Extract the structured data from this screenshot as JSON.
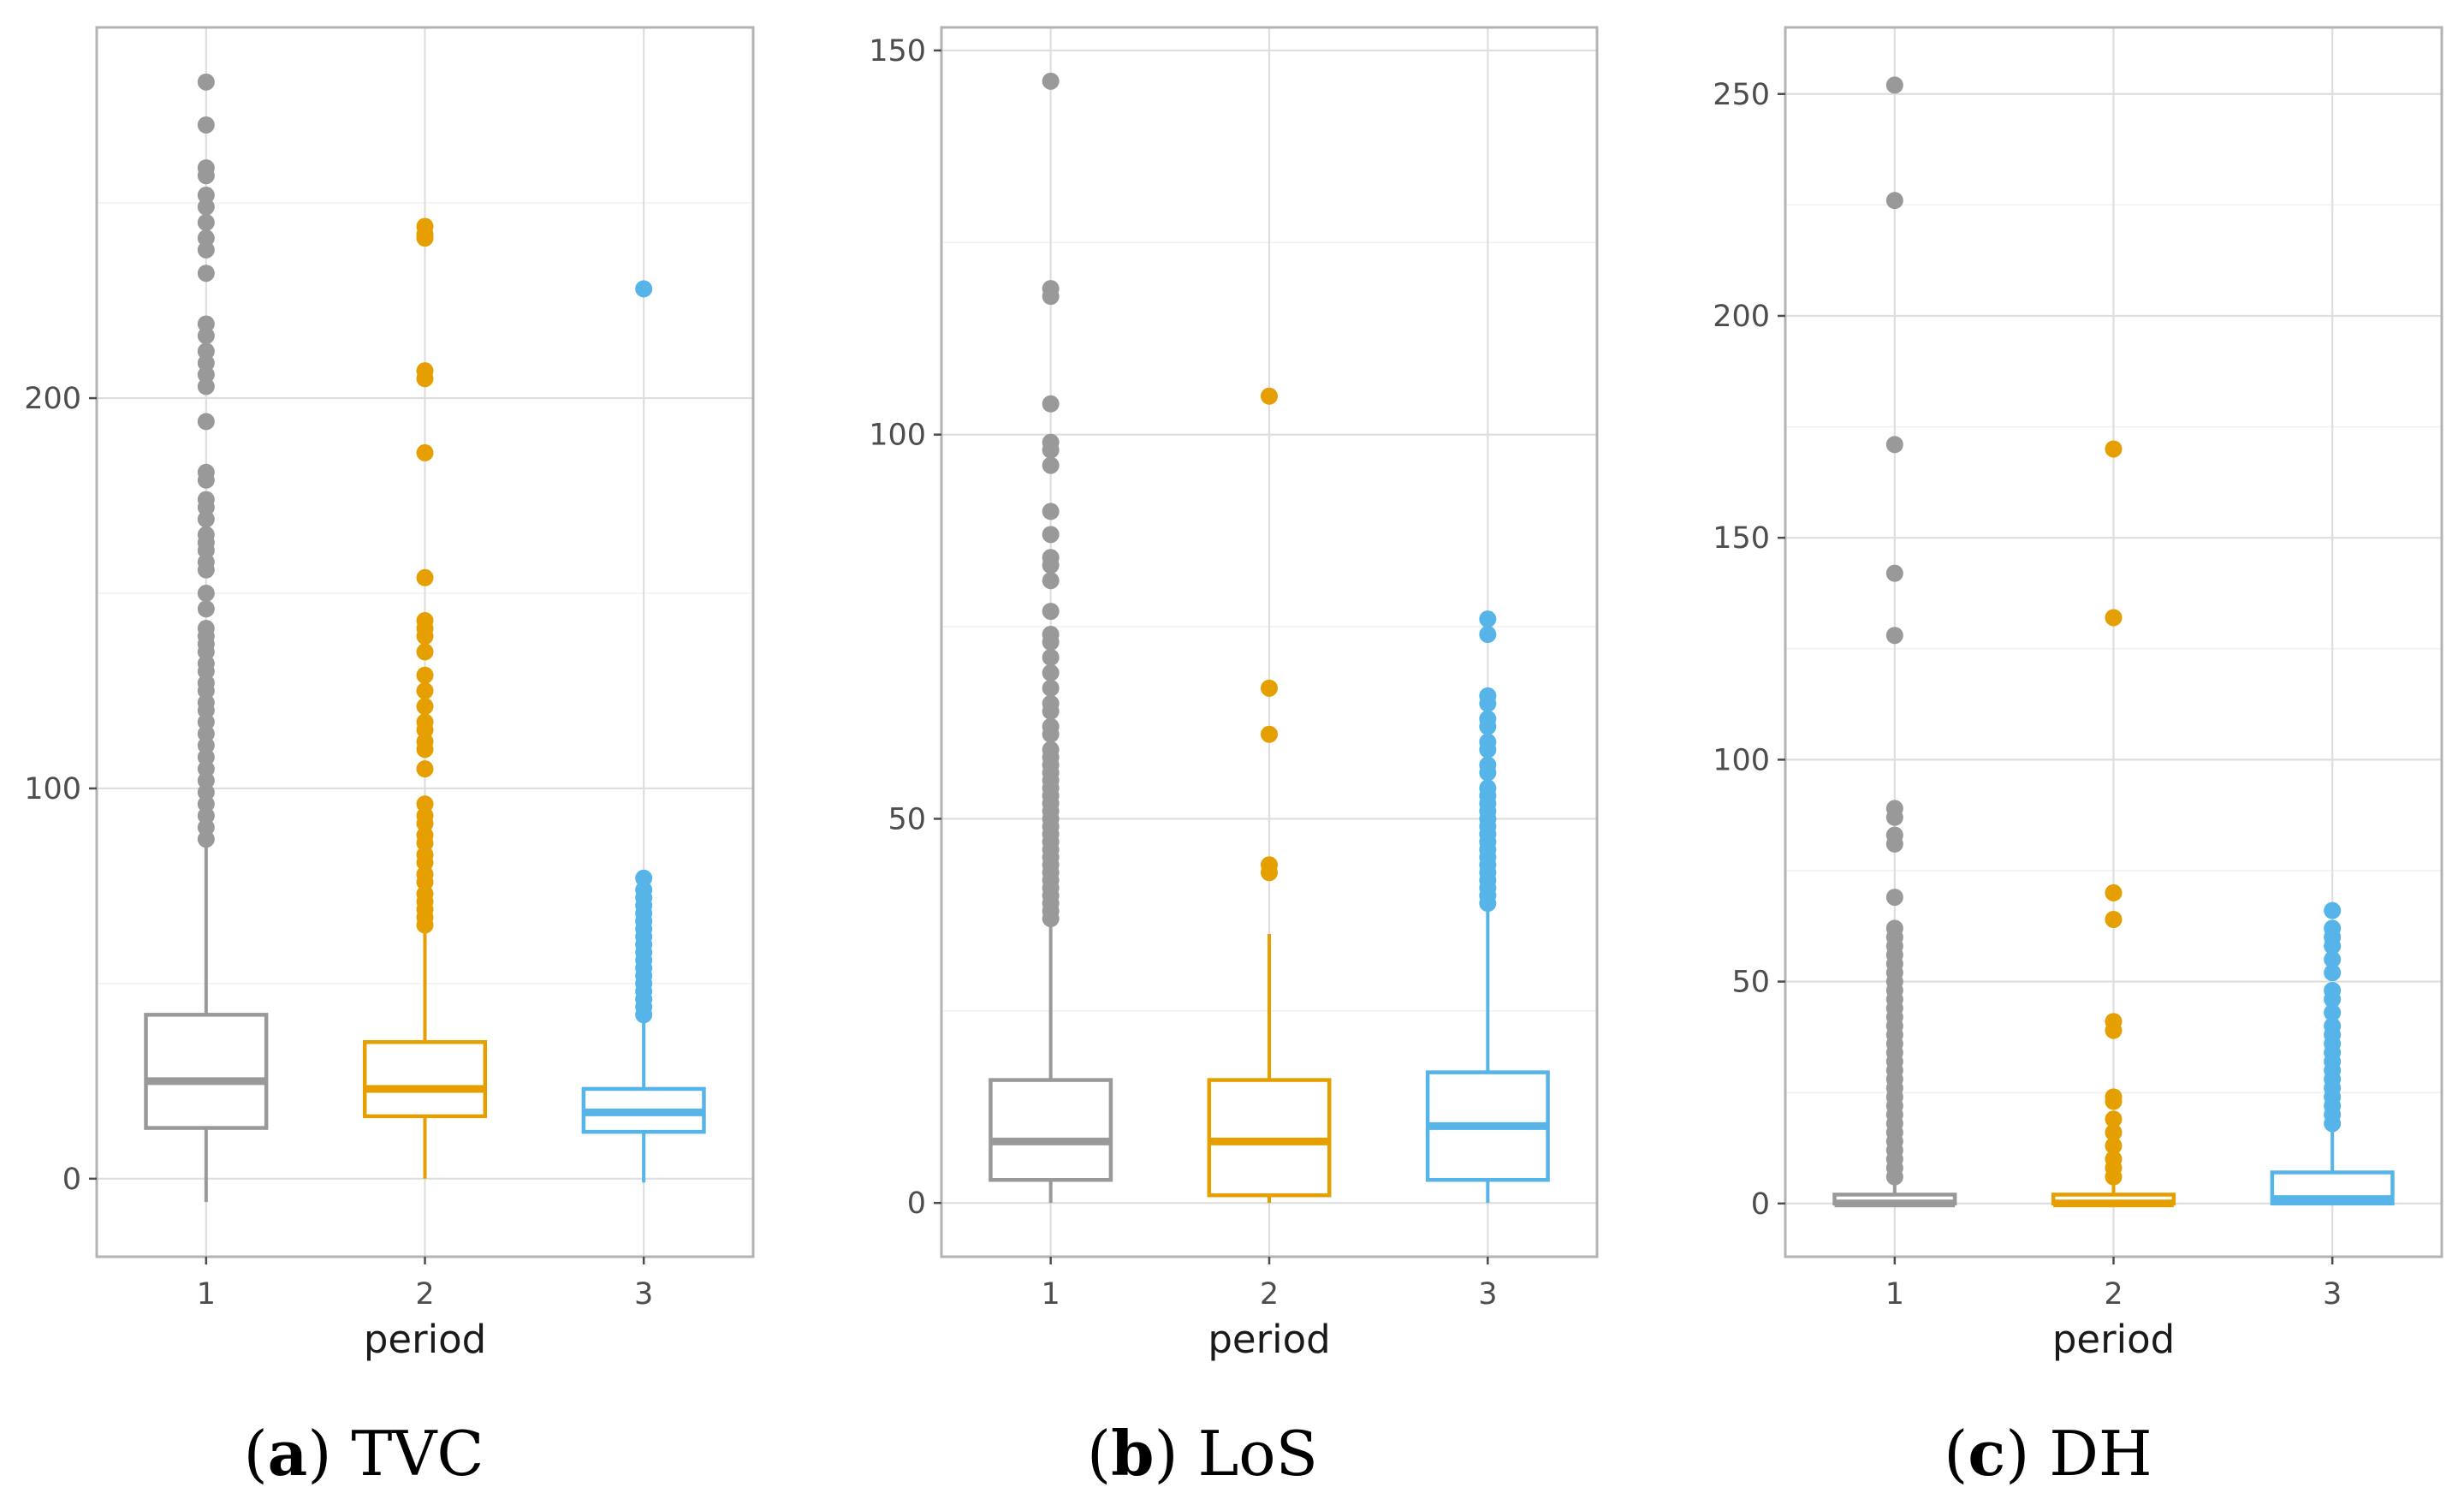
{
  "chart_data": [
    {
      "type": "boxplot",
      "caption_letter": "a",
      "caption_text": "TVC",
      "xlabel": "period",
      "ylabel": "",
      "ylim": [
        -20,
        295
      ],
      "yticks": [
        0,
        100,
        200
      ],
      "gridlines": true,
      "categories": [
        "1",
        "2",
        "3"
      ],
      "colors": [
        "#999999",
        "#E69F00",
        "#56B4E9"
      ],
      "boxes": [
        {
          "category": "1",
          "whisker_low": -6,
          "q1": 13,
          "median": 25,
          "q3": 42,
          "whisker_high": 86,
          "outliers": [
            281,
            270,
            259,
            257,
            252,
            249,
            245,
            241,
            238,
            232,
            219,
            216,
            212,
            209,
            206,
            203,
            194,
            181,
            179,
            174,
            172,
            169,
            165,
            163,
            161,
            158,
            156,
            150,
            146,
            141,
            139,
            137,
            135,
            132,
            130,
            127,
            125,
            122,
            120,
            117,
            114,
            111,
            108,
            105,
            102,
            99,
            96,
            93,
            90,
            87
          ]
        },
        {
          "category": "2",
          "whisker_low": 0,
          "q1": 16,
          "median": 23,
          "q3": 35,
          "whisker_high": 63,
          "outliers": [
            244,
            242,
            241,
            207,
            205,
            186,
            154,
            143,
            141,
            139,
            135,
            129,
            125,
            121,
            117,
            115,
            112,
            110,
            105,
            96,
            93,
            91,
            88,
            86,
            83,
            81,
            78,
            76,
            73,
            71,
            69,
            67,
            65
          ]
        },
        {
          "category": "3",
          "whisker_low": -1,
          "q1": 12,
          "median": 17,
          "q3": 23,
          "whisker_high": 40,
          "outliers": [
            228,
            77,
            74,
            72,
            70,
            68,
            66,
            64,
            62,
            60,
            58,
            56,
            54,
            52,
            50,
            48,
            46,
            44,
            42
          ]
        }
      ]
    },
    {
      "type": "boxplot",
      "caption_letter": "b",
      "caption_text": "LoS",
      "xlabel": "period",
      "ylabel": "",
      "ylim": [
        -7,
        153
      ],
      "yticks": [
        0,
        50,
        100,
        150
      ],
      "gridlines": true,
      "categories": [
        "1",
        "2",
        "3"
      ],
      "colors": [
        "#999999",
        "#E69F00",
        "#56B4E9"
      ],
      "boxes": [
        {
          "category": "1",
          "whisker_low": 0,
          "q1": 3,
          "median": 8,
          "q3": 16,
          "whisker_high": 36,
          "outliers": [
            146,
            119,
            118,
            104,
            99,
            98,
            96,
            90,
            87,
            84,
            83,
            81,
            77,
            74,
            73,
            71,
            69,
            67,
            65,
            64,
            62,
            61,
            59,
            58,
            57,
            56,
            55,
            54,
            53,
            52,
            51,
            50,
            49,
            48,
            47,
            46,
            45,
            44,
            43,
            42,
            41,
            40,
            39,
            38,
            37
          ]
        },
        {
          "category": "2",
          "whisker_low": 0,
          "q1": 1,
          "median": 8,
          "q3": 16,
          "whisker_high": 35,
          "outliers": [
            105,
            67,
            61,
            44,
            43
          ]
        },
        {
          "category": "3",
          "whisker_low": 0,
          "q1": 3,
          "median": 10,
          "q3": 17,
          "whisker_high": 38,
          "outliers": [
            76,
            74,
            66,
            65,
            63,
            62,
            60,
            59,
            57,
            56,
            54,
            53,
            52,
            51,
            50,
            49,
            48,
            47,
            46,
            45,
            44,
            43,
            42,
            41,
            40,
            39
          ]
        }
      ]
    },
    {
      "type": "boxplot",
      "caption_letter": "c",
      "caption_text": "DH",
      "xlabel": "period",
      "ylabel": "",
      "ylim": [
        -12,
        265
      ],
      "yticks": [
        0,
        50,
        100,
        150,
        200,
        250
      ],
      "gridlines": true,
      "categories": [
        "1",
        "2",
        "3"
      ],
      "colors": [
        "#999999",
        "#E69F00",
        "#56B4E9"
      ],
      "boxes": [
        {
          "category": "1",
          "whisker_low": 0,
          "q1": 0,
          "median": 0,
          "q3": 2,
          "whisker_high": 5,
          "outliers": [
            252,
            226,
            171,
            142,
            128,
            89,
            87,
            83,
            81,
            69,
            62,
            60,
            58,
            56,
            54,
            52,
            50,
            48,
            46,
            44,
            42,
            40,
            38,
            36,
            34,
            32,
            30,
            28,
            26,
            24,
            22,
            20,
            18,
            16,
            14,
            12,
            10,
            8,
            6
          ]
        },
        {
          "category": "2",
          "whisker_low": 0,
          "q1": 0,
          "median": 0,
          "q3": 2,
          "whisker_high": 5,
          "outliers": [
            170,
            132,
            70,
            64,
            41,
            39,
            24,
            23,
            19,
            16,
            13,
            10,
            8,
            6
          ]
        },
        {
          "category": "3",
          "whisker_low": 0,
          "q1": 0,
          "median": 1,
          "q3": 7,
          "whisker_high": 17,
          "outliers": [
            66,
            62,
            60,
            58,
            55,
            52,
            48,
            46,
            43,
            40,
            38,
            36,
            34,
            32,
            30,
            28,
            26,
            24,
            22,
            20,
            18
          ]
        }
      ]
    }
  ]
}
